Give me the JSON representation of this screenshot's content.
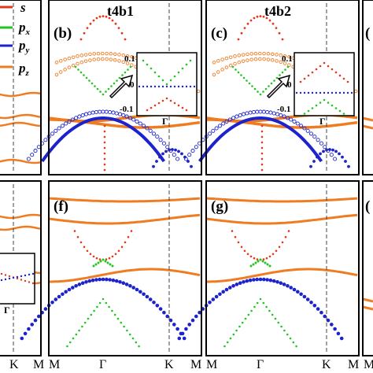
{
  "colors": {
    "s": "#e0391a",
    "px": "#22c422",
    "py": "#1c22cc",
    "pz": "#f07c22",
    "frame": "#000000"
  },
  "legend": [
    {
      "key": "s",
      "base": "s",
      "sub": ""
    },
    {
      "key": "px",
      "base": "p",
      "sub": "x"
    },
    {
      "key": "py",
      "base": "p",
      "sub": "y"
    },
    {
      "key": "pz",
      "base": "p",
      "sub": "z"
    }
  ],
  "panels": [
    {
      "id": "a-partial",
      "label": "",
      "title": ""
    },
    {
      "id": "b",
      "label": "(b)",
      "title": "t4b1"
    },
    {
      "id": "c",
      "label": "(c)",
      "title": "t4b2"
    },
    {
      "id": "d-partial",
      "label": "(",
      "title": ""
    },
    {
      "id": "e-partial",
      "label": "",
      "title": ""
    },
    {
      "id": "f",
      "label": "(f)",
      "title": ""
    },
    {
      "id": "g",
      "label": "(g)",
      "title": ""
    },
    {
      "id": "h-partial",
      "label": "(",
      "title": ""
    }
  ],
  "insets": {
    "b": {
      "ticks": [
        "0.1",
        "0",
        "-0.1"
      ],
      "gamma": "Γ"
    },
    "c": {
      "ticks": [
        "0.1",
        "0",
        "-0.1"
      ],
      "gamma": "Γ"
    },
    "e": {
      "gamma": "Γ"
    }
  },
  "x_ticks": {
    "left_partial": [
      "K",
      "M"
    ],
    "full": [
      "M",
      "Γ",
      "K",
      "M"
    ]
  },
  "chart_data": {
    "type": "scatter",
    "title": "",
    "xlabel": "",
    "ylabel": "",
    "x_ticks": [
      "M",
      "Γ",
      "K",
      "M"
    ],
    "series": [
      {
        "name": "s"
      },
      {
        "name": "px"
      },
      {
        "name": "py"
      },
      {
        "name": "pz"
      }
    ]
  }
}
